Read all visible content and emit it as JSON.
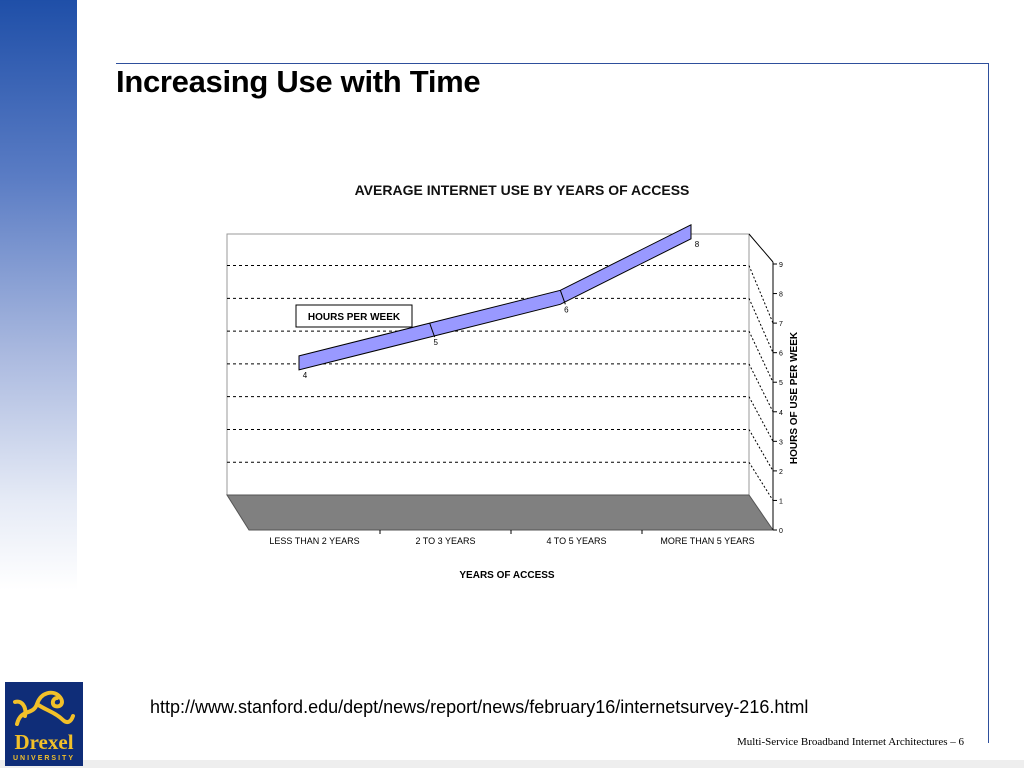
{
  "slide": {
    "title": "Increasing Use with Time",
    "source_url": "http://www.stanford.edu/dept/news/report/news/february16/internetsurvey-216.html",
    "footer": "Multi-Service Broadband Internet Architectures – 6",
    "logo": {
      "word": "Drexel",
      "sub": "UNIVERSITY",
      "icon": "dragon-icon"
    }
  },
  "colors": {
    "accent": "#2e4f9c",
    "line_fill": "#9999ff",
    "floor": "#808080"
  },
  "chart_data": {
    "type": "line",
    "title": "AVERAGE INTERNET USE BY YEARS OF ACCESS",
    "xlabel": "YEARS OF ACCESS",
    "ylabel": "HOURS OF USE PER WEEK",
    "categories": [
      "LESS THAN 2 YEARS",
      "2 TO 3 YEARS",
      "4 TO 5 YEARS",
      "MORE THAN 5 YEARS"
    ],
    "series": [
      {
        "name": "HOURS PER WEEK",
        "values": [
          4,
          5,
          6,
          8
        ],
        "data_labels": [
          "4",
          "5",
          "6",
          "8"
        ]
      }
    ],
    "ylim": [
      0,
      9
    ],
    "yticks": [
      "0",
      "1",
      "2",
      "3",
      "4",
      "5",
      "6",
      "7",
      "8",
      "9"
    ],
    "grid": true,
    "legend": "top-left",
    "style": "3d-ribbon"
  }
}
